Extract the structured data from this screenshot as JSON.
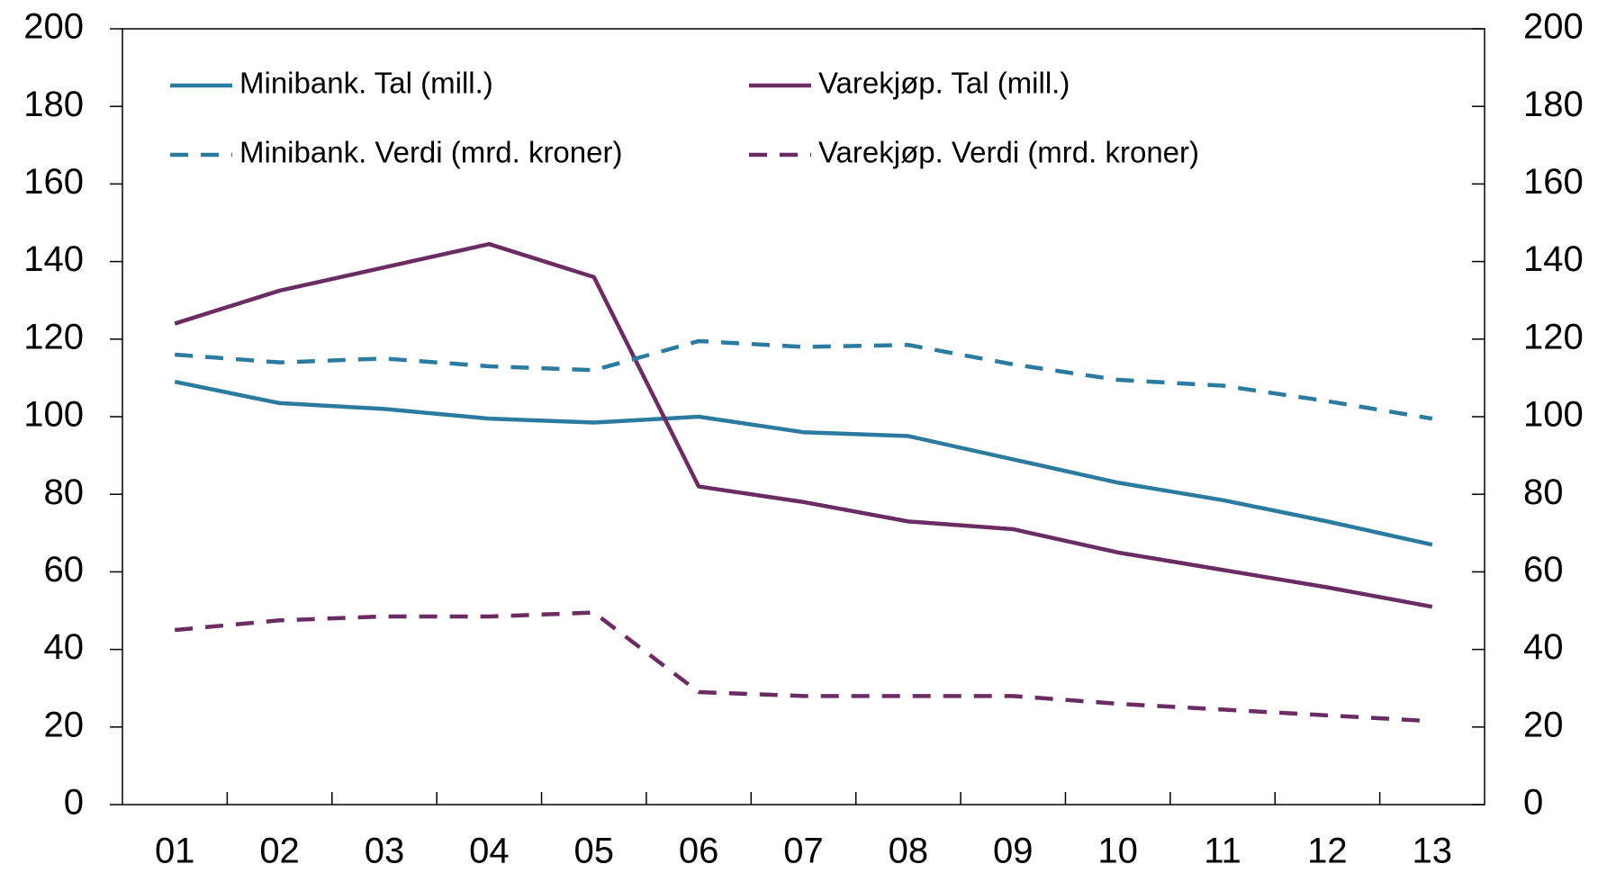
{
  "chart_data": {
    "type": "line",
    "categories": [
      "01",
      "02",
      "03",
      "04",
      "05",
      "06",
      "07",
      "08",
      "09",
      "10",
      "11",
      "12",
      "13"
    ],
    "series": [
      {
        "name": "Minibank. Tal (mill.)",
        "color": "#2b7ba0",
        "dashed": false,
        "values": [
          109,
          103.5,
          102,
          99.5,
          98.5,
          100,
          96,
          95,
          89,
          83,
          78.5,
          73,
          67
        ]
      },
      {
        "name": "Varekjøp. Tal (mill.)",
        "color": "#6b2c64",
        "dashed": false,
        "values": [
          124,
          132.5,
          138.5,
          144.5,
          136,
          82,
          78,
          73,
          71,
          65,
          60.5,
          56,
          51
        ]
      },
      {
        "name": "Minibank. Verdi (mrd. kroner)",
        "color": "#2b7ba0",
        "dashed": true,
        "values": [
          116,
          114,
          115,
          113,
          112,
          119.5,
          118,
          118.5,
          113.5,
          109.5,
          108,
          104,
          99.5
        ]
      },
      {
        "name": "Varekjøp. Verdi (mrd. kroner)",
        "color": "#6b2c64",
        "dashed": true,
        "values": [
          45,
          47.5,
          48.5,
          48.5,
          49.5,
          29,
          28,
          28,
          28,
          26,
          24.5,
          23,
          21.5
        ]
      }
    ],
    "ylim": [
      0,
      200
    ],
    "yticks": [
      0,
      20,
      40,
      60,
      80,
      100,
      120,
      140,
      160,
      180,
      200
    ],
    "y2lim": [
      0,
      200
    ],
    "y2ticks": [
      0,
      20,
      40,
      60,
      80,
      100,
      120,
      140,
      160,
      180,
      200
    ],
    "grid": false,
    "legend": "top"
  }
}
